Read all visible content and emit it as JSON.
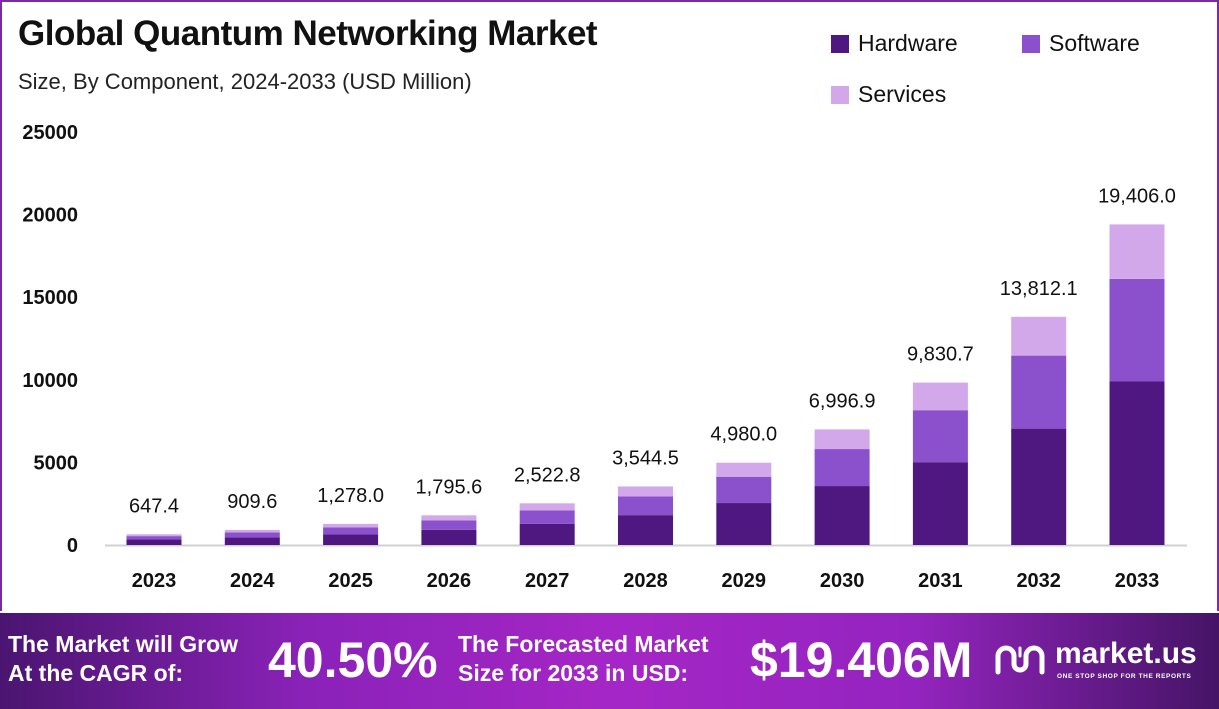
{
  "chart_data": {
    "type": "bar",
    "stacked": true,
    "title": "Global Quantum Networking Market",
    "subtitle": "Size, By Component, 2024-2033 (USD Million)",
    "xlabel": "",
    "ylabel": "",
    "ylim": [
      0,
      25000
    ],
    "yticks": [
      0,
      5000,
      10000,
      15000,
      20000,
      25000
    ],
    "ytick_labels": [
      "0",
      "5000",
      "10000",
      "15000",
      "20000",
      "25000"
    ],
    "grid": false,
    "legend_position": "top-right",
    "categories": [
      "2023",
      "2024",
      "2025",
      "2026",
      "2027",
      "2028",
      "2029",
      "2030",
      "2031",
      "2032",
      "2033"
    ],
    "totals": [
      647.4,
      909.6,
      1278.0,
      1795.6,
      2522.8,
      3544.5,
      4980.0,
      6996.9,
      9830.7,
      13812.1,
      19406.0
    ],
    "total_labels": [
      "647.4",
      "909.6",
      "1,278.0",
      "1,795.6",
      "2,522.8",
      "3,544.5",
      "4,980.0",
      "6,996.9",
      "9,830.7",
      "13,812.1",
      "19,406.0"
    ],
    "series": [
      {
        "name": "Hardware",
        "color": "#4f1880",
        "values": [
          330.2,
          463.9,
          651.8,
          915.8,
          1286.6,
          1807.7,
          2539.8,
          3568.4,
          5013.7,
          7044.2,
          9897.1
        ]
      },
      {
        "name": "Software",
        "color": "#8b50cc",
        "values": [
          207.2,
          291.1,
          409.0,
          574.6,
          807.3,
          1134.2,
          1593.6,
          2239.0,
          3145.8,
          4419.9,
          6209.9
        ]
      },
      {
        "name": "Services",
        "color": "#d3a8ea",
        "values": [
          110.0,
          154.6,
          217.2,
          305.2,
          428.9,
          602.6,
          846.6,
          1189.5,
          1671.2,
          2348.0,
          3299.0
        ]
      }
    ]
  },
  "banner": {
    "cagr_label_line1": "The Market will Grow",
    "cagr_label_line2": "At the CAGR of:",
    "cagr_value": "40.50%",
    "forecast_label_line1": "The Forecasted Market",
    "forecast_label_line2": "Size for 2033 in USD:",
    "forecast_value": "$19.406M",
    "brand_name": "market.us",
    "brand_tagline": "ONE STOP SHOP FOR THE REPORTS"
  },
  "colors": {
    "frame": "#7b2aa6",
    "axis_line": "#d0d0d0"
  }
}
